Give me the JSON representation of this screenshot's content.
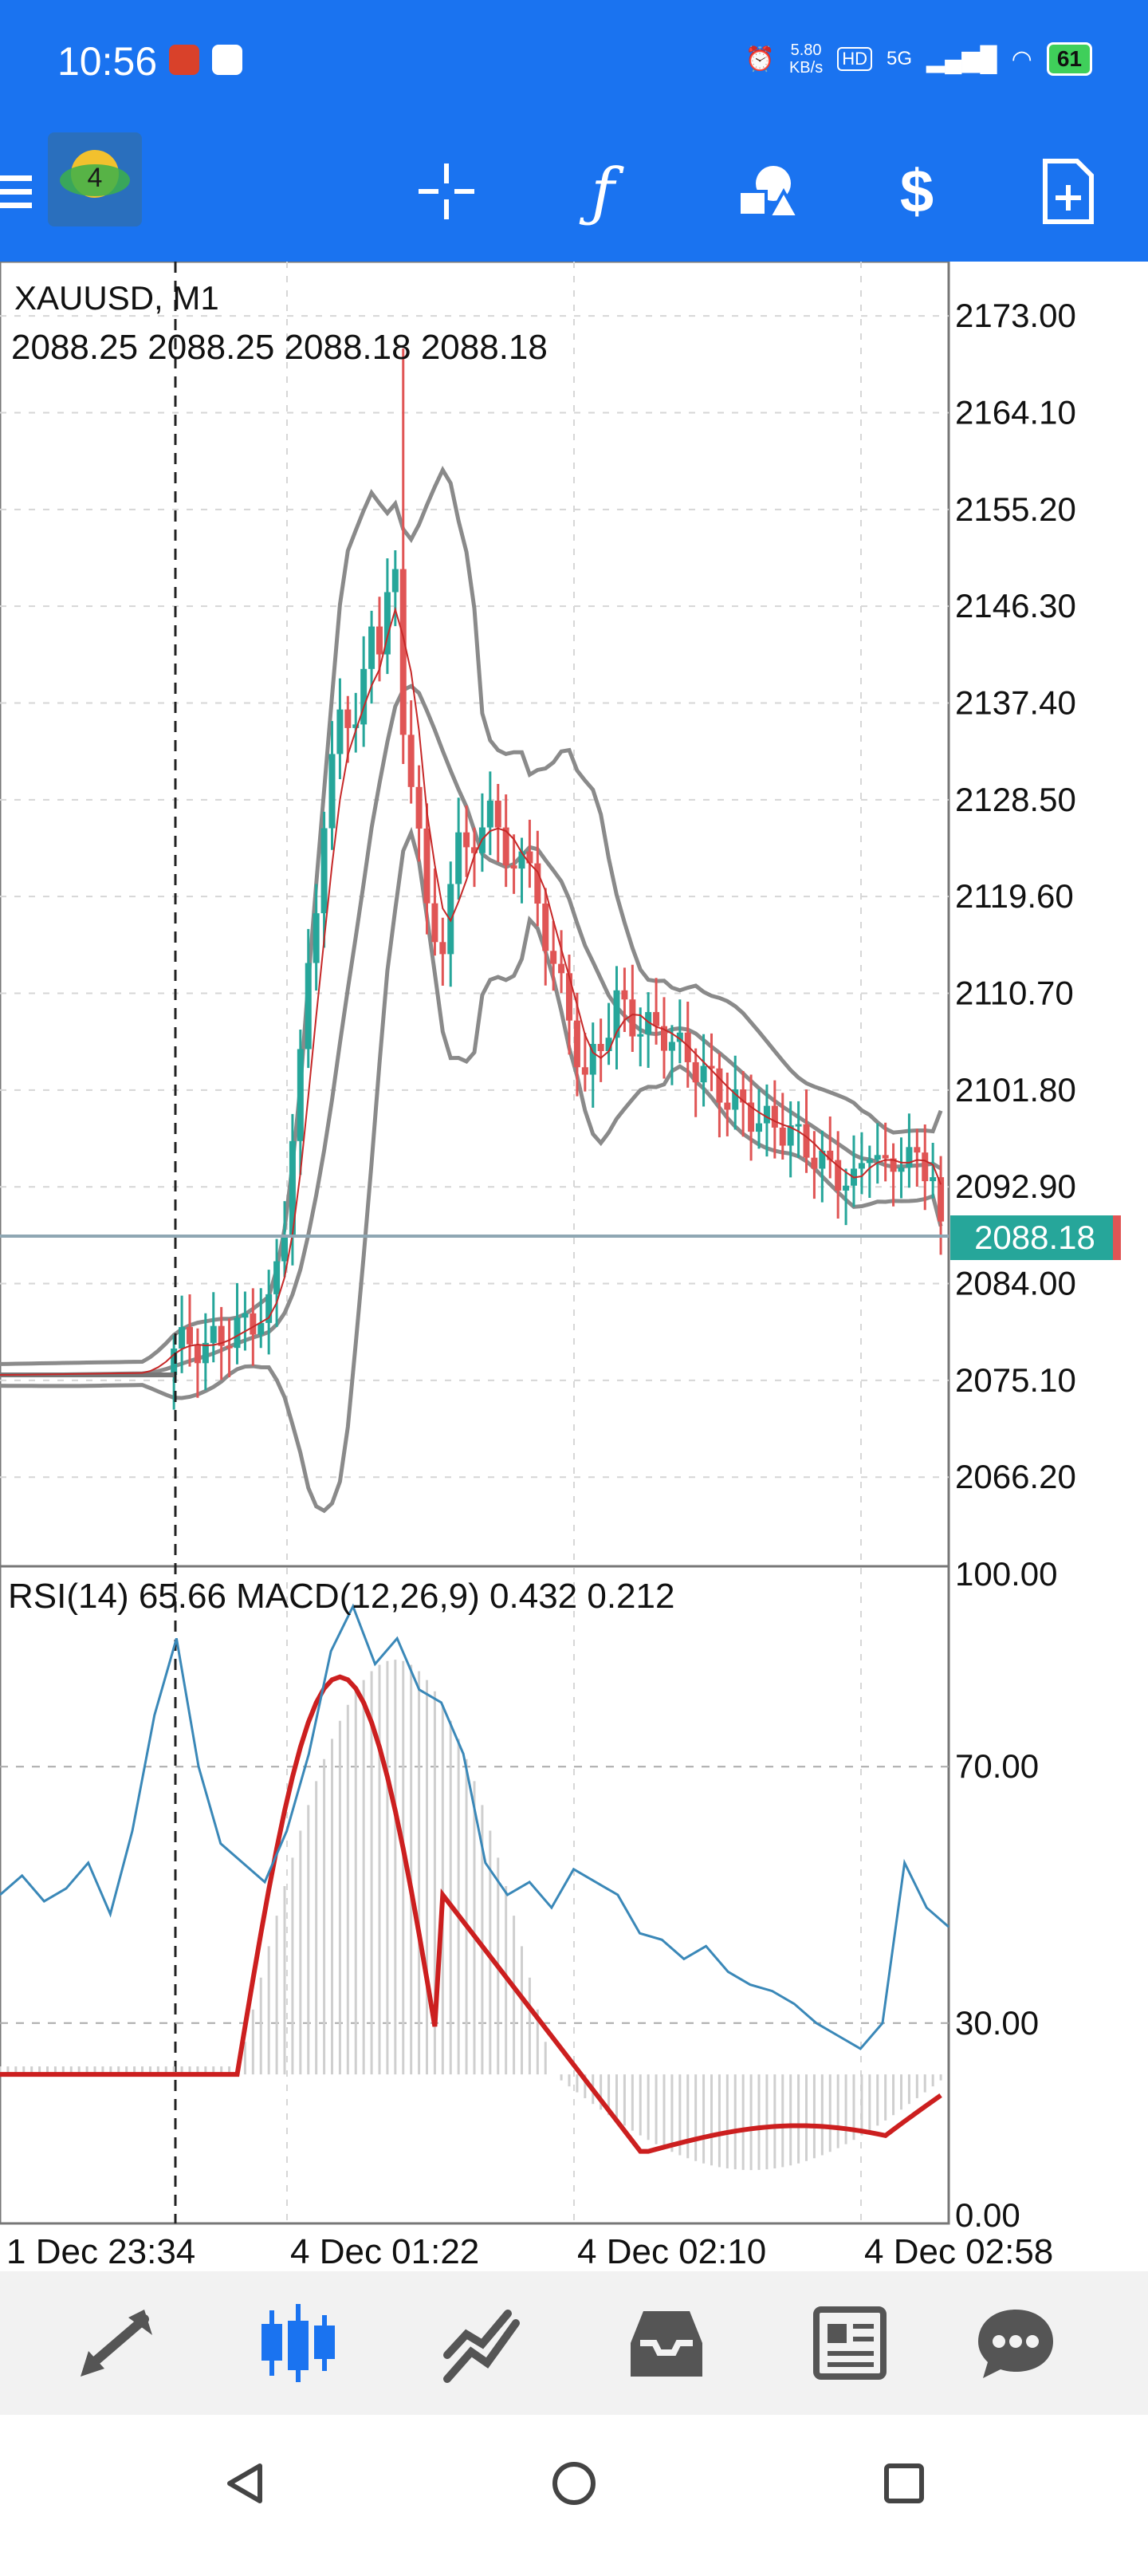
{
  "status_bar": {
    "time": "10:56",
    "net_speed_value": "5.80",
    "net_speed_unit": "KB/s",
    "hd_label": "HD",
    "network": "5G",
    "battery": "61"
  },
  "toolbar": {
    "icons": [
      "menu-icon",
      "crosshair-icon",
      "function-icon",
      "objects-icon",
      "trade-icon",
      "new-order-icon"
    ]
  },
  "chart": {
    "symbol": "XAUUSD, M1",
    "ohlc": "2088.25 2088.25 2088.18 2088.18",
    "current_price": "2088.18",
    "price_ticks": [
      "2173.00",
      "2164.10",
      "2155.20",
      "2146.30",
      "2137.40",
      "2128.50",
      "2119.60",
      "2110.70",
      "2101.80",
      "2092.90",
      "2084.00",
      "2075.10",
      "2066.20"
    ],
    "indicator_label": "RSI(14) 65.66 MACD(12,26,9) 0.432 0.212",
    "indicator_ticks": [
      "100.00",
      "70.00",
      "30.00",
      "0.00"
    ],
    "time_ticks": [
      "1 Dec 23:34",
      "4 Dec 01:22",
      "4 Dec 02:10",
      "4 Dec 02:58"
    ],
    "colors": {
      "bull": "#26a69a",
      "bear": "#e05555",
      "bands": "#8a8a8a",
      "ma": "#c62828",
      "rsi": "#3a88b8",
      "macd_signal": "#cc1f1f",
      "price_tag": "#26a69a"
    }
  },
  "chart_data": {
    "type": "line",
    "symbol": "XAUUSD, M1",
    "ylim": [
      2058,
      2178
    ],
    "series_price_close": [
      [
        0,
        2075.6
      ],
      [
        18,
        2075.8
      ],
      [
        22,
        2078.5
      ],
      [
        26,
        2078.2
      ],
      [
        30,
        2079.8
      ],
      [
        34,
        2081.5
      ],
      [
        36,
        2090
      ],
      [
        38,
        2104
      ],
      [
        39,
        2114
      ],
      [
        41,
        2125
      ],
      [
        43,
        2138
      ],
      [
        45,
        2134
      ],
      [
        47,
        2146
      ],
      [
        48,
        2142
      ],
      [
        50,
        2150
      ],
      [
        51,
        2136
      ],
      [
        52,
        2129
      ],
      [
        54,
        2120
      ],
      [
        56,
        2113
      ],
      [
        58,
        2127
      ],
      [
        60,
        2122
      ],
      [
        62,
        2130
      ],
      [
        64,
        2121
      ],
      [
        66,
        2125
      ],
      [
        68,
        2118
      ],
      [
        70,
        2114
      ],
      [
        72,
        2108
      ],
      [
        74,
        2103
      ],
      [
        76,
        2106
      ],
      [
        78,
        2110
      ],
      [
        80,
        2108
      ],
      [
        84,
        2107
      ],
      [
        88,
        2104
      ],
      [
        92,
        2101
      ],
      [
        96,
        2099
      ],
      [
        100,
        2098
      ],
      [
        104,
        2095
      ],
      [
        108,
        2093
      ],
      [
        110,
        2097
      ],
      [
        112,
        2094
      ],
      [
        114,
        2096
      ],
      [
        116,
        2095
      ],
      [
        118,
        2094.5
      ],
      [
        119,
        2088.2
      ]
    ],
    "rsi": [
      50,
      53,
      49,
      51,
      55,
      47,
      60,
      78,
      90,
      70,
      58,
      55,
      52,
      60,
      72,
      88,
      95,
      86,
      90,
      82,
      80,
      72,
      55,
      50,
      52,
      48,
      54,
      52,
      50,
      44,
      43,
      40,
      42,
      38,
      36,
      35,
      33,
      30,
      28,
      26,
      30,
      55,
      48,
      45
    ]
  }
}
